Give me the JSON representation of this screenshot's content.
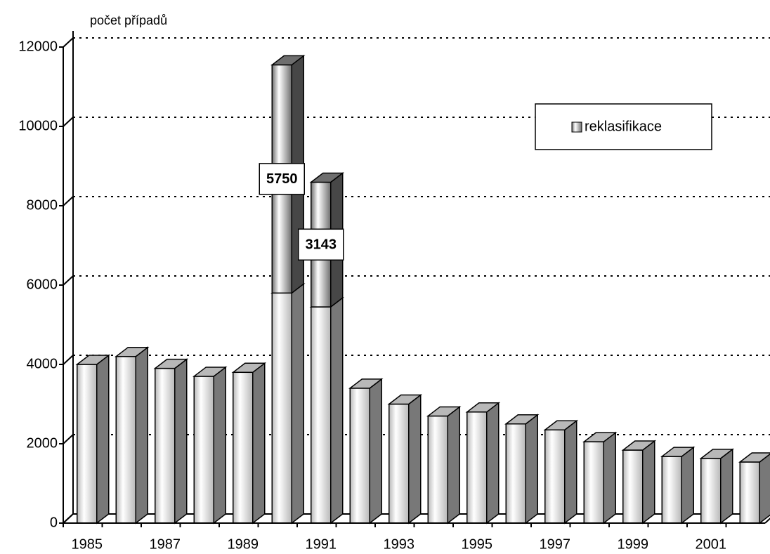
{
  "chart_data": {
    "type": "bar3d_stacked",
    "y_label": "počet případů",
    "categories": [
      "1985",
      null,
      "1987",
      null,
      "1989",
      null,
      "1991",
      null,
      "1993",
      null,
      "1995",
      null,
      "1997",
      null,
      "1999",
      null,
      "2001",
      null
    ],
    "series": [
      {
        "color": "#b8b8b8",
        "values": [
          4000,
          4200,
          3900,
          3700,
          3800,
          5800,
          5450,
          3400,
          3000,
          2700,
          2800,
          2500,
          2350,
          2050,
          1840,
          1680,
          1630,
          1540
        ]
      },
      {
        "name": "reklasifikace",
        "color": "#6e6e6e",
        "values": [
          null,
          null,
          null,
          null,
          null,
          5750,
          3143,
          null,
          null,
          null,
          null,
          null,
          null,
          null,
          null,
          null,
          null,
          null
        ]
      }
    ],
    "ylim": [
      0,
      12000
    ],
    "yticks": [
      0,
      2000,
      4000,
      6000,
      8000,
      10000,
      12000
    ],
    "grid": true,
    "legend": "top-right"
  }
}
